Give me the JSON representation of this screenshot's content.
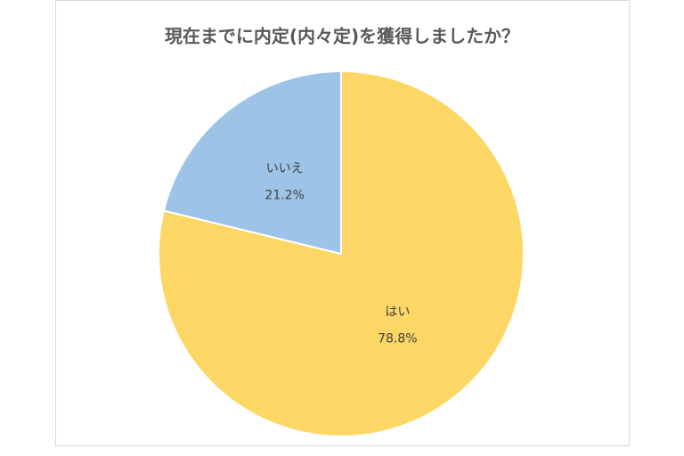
{
  "chart_data": {
    "type": "pie",
    "title": "現在までに内定(内々定)を獲得しましたか？",
    "categories": [
      "はい",
      "いいえ"
    ],
    "values": [
      78.8,
      21.2
    ],
    "value_labels": [
      "78.8%",
      "21.2%"
    ],
    "colors": [
      "#fdd765",
      "#9dc3e6"
    ]
  }
}
